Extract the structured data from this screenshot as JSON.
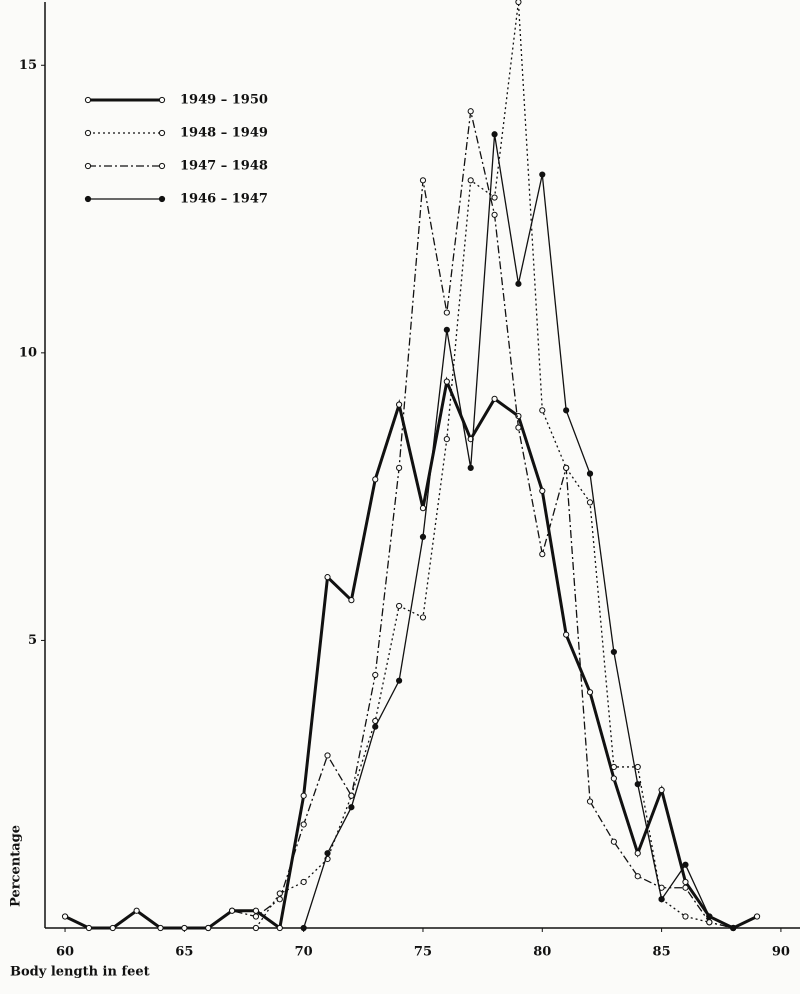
{
  "chart_data": {
    "type": "line",
    "y_label": "Percentage",
    "x_label": "Body length in feet",
    "x": [
      60,
      61,
      62,
      63,
      64,
      65,
      66,
      67,
      68,
      69,
      70,
      71,
      72,
      73,
      74,
      75,
      76,
      77,
      78,
      79,
      80,
      81,
      82,
      83,
      84,
      85,
      86,
      87,
      88,
      89
    ],
    "xlim": [
      59.16,
      90.8
    ],
    "xticks": [
      60,
      65,
      70,
      75,
      80,
      85,
      90
    ],
    "ylim": [
      0,
      16.1
    ],
    "yticks": [
      5,
      10,
      15
    ],
    "series": [
      {
        "name": "1949 – 1950",
        "color": "#111111",
        "line_style": "solid",
        "line_width": 3,
        "marker_fill": "open",
        "values": [
          0.2,
          0,
          0,
          0.3,
          0,
          0,
          0,
          0.3,
          0.3,
          0,
          2.3,
          6.1,
          5.7,
          7.8,
          9.1,
          7.3,
          9.5,
          8.5,
          9.2,
          8.9,
          7.6,
          5.1,
          4.1,
          2.6,
          1.3,
          2.4,
          0.8,
          0.2,
          0,
          0.2
        ]
      },
      {
        "name": "1948 – 1949",
        "color": "#111111",
        "line_style": "dotted",
        "line_width": 1.3,
        "marker_fill": "open",
        "values": [
          null,
          null,
          null,
          null,
          null,
          null,
          null,
          null,
          0,
          0.6,
          0.8,
          1.2,
          2.3,
          3.6,
          5.6,
          5.4,
          8.5,
          13.0,
          12.7,
          16.1,
          9.0,
          8.0,
          7.4,
          2.8,
          2.8,
          0.5,
          0.2,
          0.1,
          0,
          null
        ]
      },
      {
        "name": "1947 – 1948",
        "color": "#111111",
        "line_style": "dashdot",
        "line_width": 1.3,
        "marker_fill": "open",
        "values": [
          null,
          null,
          null,
          null,
          null,
          null,
          0,
          0.3,
          0.2,
          0.5,
          1.8,
          3.0,
          2.3,
          4.4,
          8.0,
          13.0,
          10.7,
          14.2,
          12.4,
          8.7,
          6.5,
          8.0,
          2.2,
          1.5,
          0.9,
          0.7,
          0.7,
          0.1,
          0,
          null
        ]
      },
      {
        "name": "1946 – 1947",
        "color": "#111111",
        "line_style": "solid",
        "line_width": 1.3,
        "marker_fill": "filled",
        "values": [
          null,
          null,
          null,
          null,
          null,
          null,
          null,
          null,
          null,
          null,
          0,
          1.3,
          2.1,
          3.5,
          4.3,
          6.8,
          10.4,
          8.0,
          13.8,
          11.2,
          13.1,
          9.0,
          7.9,
          4.8,
          2.5,
          0.5,
          1.1,
          0.2,
          0,
          null
        ]
      }
    ]
  }
}
